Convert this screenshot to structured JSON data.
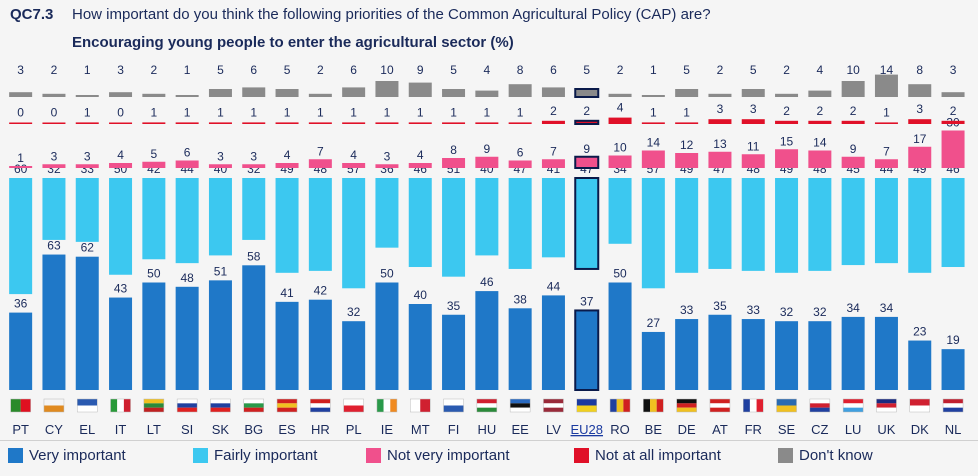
{
  "header": {
    "qid": "QC7.3",
    "question": "How important do you think the following priorities of the Common Agricultural Policy (CAP) are?",
    "subtitle": "Encouraging young people to enter the agricultural sector (%)"
  },
  "legend": [
    {
      "label": "Very important",
      "color": "#1f78c8"
    },
    {
      "label": "Fairly important",
      "color": "#3cc8f0"
    },
    {
      "label": "Not very important",
      "color": "#f0508c"
    },
    {
      "label": "Not at all important",
      "color": "#e01028"
    },
    {
      "label": "Don't know",
      "color": "#8a8a8a"
    }
  ],
  "chart_data": {
    "type": "bar",
    "stacked": "separate",
    "highlight": "EU28",
    "categories": [
      "PT",
      "CY",
      "EL",
      "IT",
      "LT",
      "SI",
      "SK",
      "BG",
      "ES",
      "HR",
      "PL",
      "IE",
      "MT",
      "FI",
      "HU",
      "EE",
      "LV",
      "EU28",
      "RO",
      "BE",
      "DE",
      "AT",
      "FR",
      "SE",
      "CZ",
      "LU",
      "UK",
      "DK",
      "NL"
    ],
    "series": [
      {
        "name": "Very important",
        "color": "#1f78c8",
        "values": [
          36,
          63,
          62,
          43,
          50,
          48,
          51,
          58,
          41,
          42,
          32,
          50,
          40,
          35,
          46,
          38,
          44,
          37,
          50,
          27,
          33,
          35,
          33,
          32,
          32,
          34,
          34,
          23,
          19
        ]
      },
      {
        "name": "Fairly important",
        "color": "#3cc8f0",
        "values": [
          60,
          32,
          33,
          50,
          42,
          44,
          40,
          32,
          49,
          48,
          57,
          36,
          46,
          51,
          40,
          47,
          41,
          47,
          34,
          57,
          49,
          47,
          48,
          49,
          48,
          45,
          44,
          49,
          46
        ]
      },
      {
        "name": "Not very important",
        "color": "#f0508c",
        "values": [
          1,
          3,
          3,
          4,
          5,
          6,
          3,
          3,
          4,
          7,
          4,
          3,
          4,
          8,
          9,
          6,
          7,
          9,
          10,
          14,
          12,
          13,
          11,
          15,
          14,
          9,
          7,
          17,
          30
        ]
      },
      {
        "name": "Not at all important",
        "color": "#e01028",
        "values": [
          0,
          0,
          1,
          0,
          1,
          1,
          1,
          1,
          1,
          1,
          1,
          1,
          1,
          1,
          1,
          1,
          2,
          2,
          4,
          1,
          1,
          3,
          3,
          2,
          2,
          2,
          1,
          3,
          2
        ]
      },
      {
        "name": "Don't know",
        "color": "#8a8a8a",
        "values": [
          3,
          2,
          1,
          3,
          2,
          1,
          5,
          6,
          5,
          2,
          6,
          10,
          9,
          5,
          4,
          8,
          6,
          5,
          2,
          1,
          5,
          2,
          5,
          2,
          4,
          10,
          14,
          8,
          3
        ]
      }
    ],
    "flags": {
      "PT": [
        "#2a8a2a",
        "#e01020"
      ],
      "CY": [
        "#f4f4f4",
        "#e08a20"
      ],
      "EL": [
        "#2a5ab0",
        "#ffffff"
      ],
      "IT": [
        "#2a9a3a",
        "#ffffff",
        "#d02030"
      ],
      "LT": [
        "#f0c020",
        "#2a8a3a",
        "#c02020"
      ],
      "SI": [
        "#ffffff",
        "#2040a0",
        "#e02020"
      ],
      "SK": [
        "#ffffff",
        "#2040a0",
        "#e02020"
      ],
      "BG": [
        "#ffffff",
        "#2a9a4a",
        "#d02020"
      ],
      "ES": [
        "#d02020",
        "#f0c020",
        "#d02020"
      ],
      "HR": [
        "#d02020",
        "#ffffff",
        "#2040a0"
      ],
      "PL": [
        "#ffffff",
        "#e02030"
      ],
      "IE": [
        "#2a9a4a",
        "#ffffff",
        "#f08a20"
      ],
      "MT": [
        "#ffffff",
        "#d02030"
      ],
      "FI": [
        "#ffffff",
        "#2a5ab0"
      ],
      "HU": [
        "#d02030",
        "#ffffff",
        "#2a8a3a"
      ],
      "EE": [
        "#2a6ac0",
        "#101010",
        "#ffffff"
      ],
      "LV": [
        "#9a2a3a",
        "#ffffff",
        "#9a2a3a"
      ],
      "EU28": [
        "#1a3aa0",
        "#f0d020"
      ],
      "RO": [
        "#2040a0",
        "#f0c020",
        "#d02020"
      ],
      "BE": [
        "#101010",
        "#f0c020",
        "#d02020"
      ],
      "DE": [
        "#101010",
        "#d02020",
        "#f0c020"
      ],
      "AT": [
        "#d02020",
        "#ffffff",
        "#d02020"
      ],
      "FR": [
        "#2040a0",
        "#ffffff",
        "#e02030"
      ],
      "SE": [
        "#2a6ab0",
        "#f0c020"
      ],
      "CZ": [
        "#ffffff",
        "#d02030",
        "#2040a0"
      ],
      "LU": [
        "#e02030",
        "#ffffff",
        "#40a0e0"
      ],
      "UK": [
        "#1a2a80",
        "#d02030",
        "#ffffff"
      ],
      "DK": [
        "#d02030",
        "#ffffff"
      ],
      "NL": [
        "#c02030",
        "#ffffff",
        "#2040a0"
      ]
    }
  }
}
